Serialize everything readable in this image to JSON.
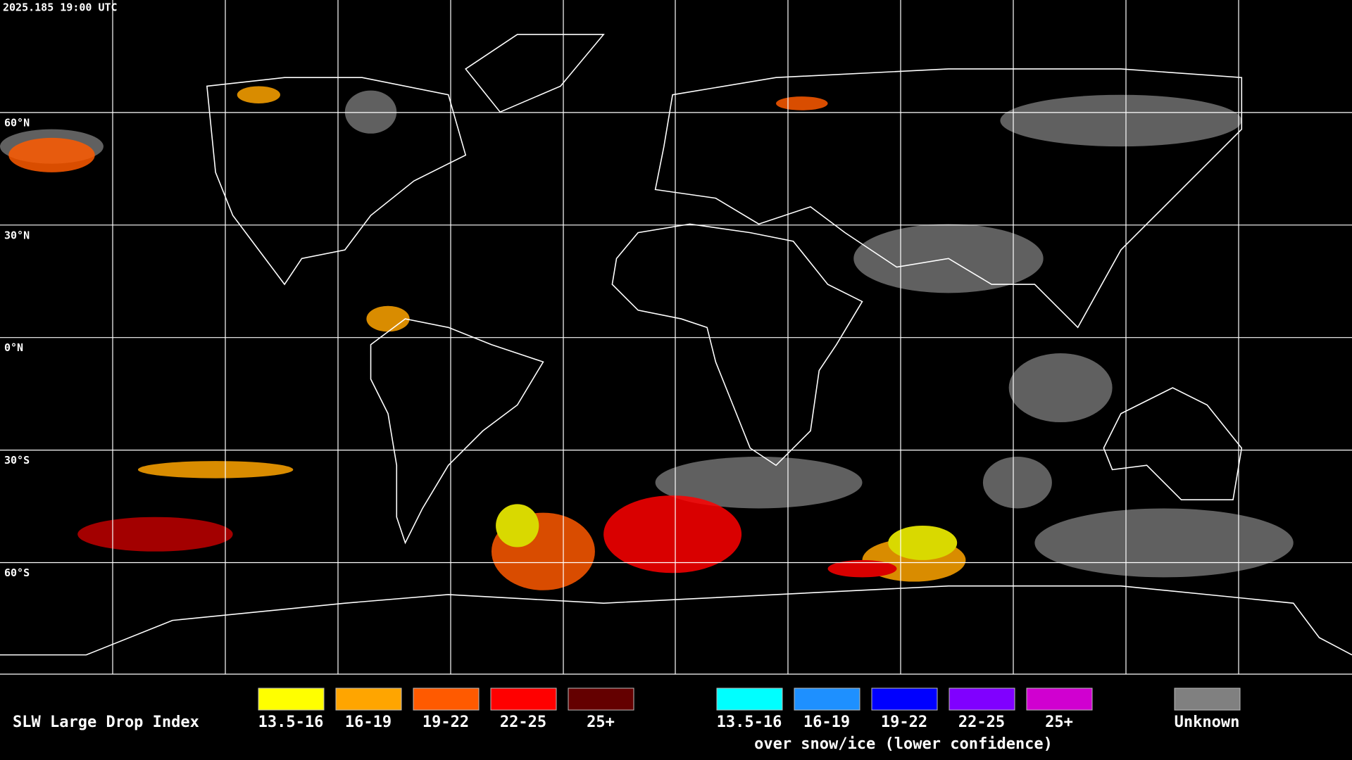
{
  "header": {
    "timestamp": "2025.185 19:00 UTC"
  },
  "grid": {
    "lat_labels": [
      "60°N",
      "30°N",
      "0°N",
      "30°S",
      "60°S"
    ]
  },
  "legend": {
    "title": "SLW Large Drop Index",
    "water": [
      {
        "label": "13.5-16",
        "color": "#ffff00"
      },
      {
        "label": "16-19",
        "color": "#ffa500"
      },
      {
        "label": "19-22",
        "color": "#ff5a00"
      },
      {
        "label": "22-25",
        "color": "#ff0000"
      },
      {
        "label": "25+",
        "color": "#640000"
      }
    ],
    "ice": [
      {
        "label": "13.5-16",
        "color": "#00ffff"
      },
      {
        "label": "16-19",
        "color": "#1e90ff"
      },
      {
        "label": "19-22",
        "color": "#0000ff"
      },
      {
        "label": "22-25",
        "color": "#8000ff"
      },
      {
        "label": "25+",
        "color": "#d000d0"
      }
    ],
    "ice_caption": "over snow/ice (lower confidence)",
    "unknown": {
      "label": "Unknown",
      "color": "#808080"
    }
  }
}
